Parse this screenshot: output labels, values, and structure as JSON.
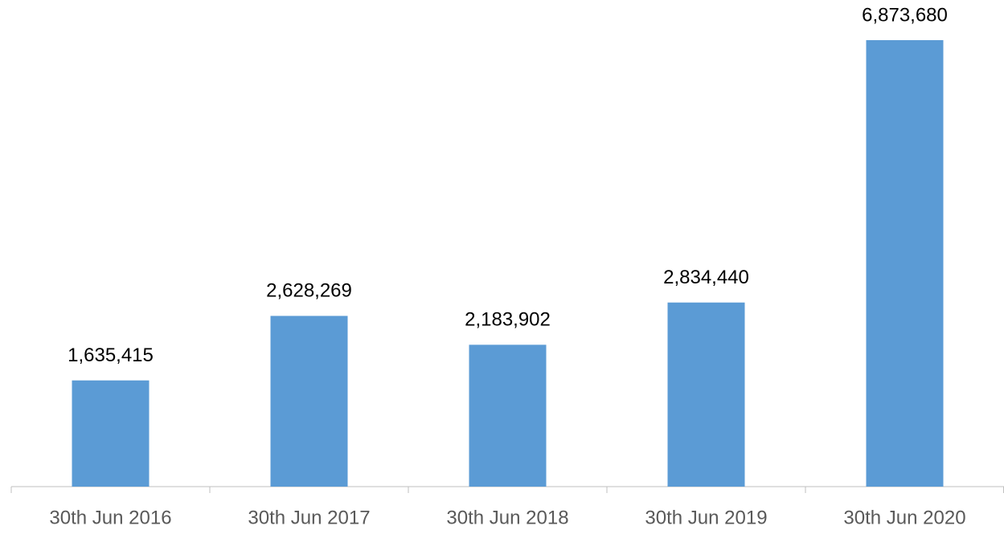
{
  "chart_data": {
    "type": "bar",
    "categories": [
      "30th Jun 2016",
      "30th Jun 2017",
      "30th Jun 2018",
      "30th Jun 2019",
      "30th Jun 2020"
    ],
    "values": [
      1635415,
      2628269,
      2183902,
      2834440,
      6873680
    ],
    "value_labels": [
      "1,635,415",
      "2,628,269",
      "2,183,902",
      "2,834,440",
      "6,873,680"
    ],
    "color": "#5b9bd5"
  }
}
